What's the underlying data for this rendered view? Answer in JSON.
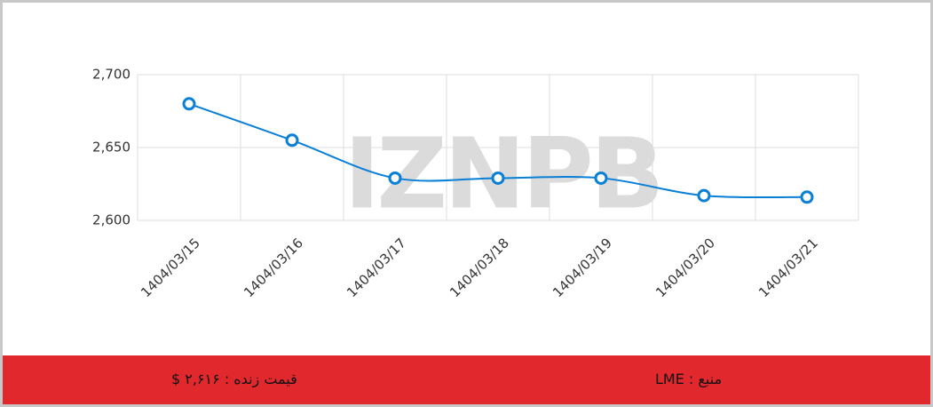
{
  "chart_data": {
    "type": "line",
    "categories": [
      "1404/03/15",
      "1404/03/16",
      "1404/03/17",
      "1404/03/18",
      "1404/03/19",
      "1404/03/20",
      "1404/03/21"
    ],
    "series": [
      {
        "name": "LME",
        "color": "#0a7fd6",
        "values": [
          2680,
          2655,
          2629,
          2629,
          2629,
          2617,
          2616
        ]
      }
    ],
    "ylim": [
      2600,
      2700
    ],
    "yticks": [
      {
        "value": 2600,
        "label": "2,600"
      },
      {
        "value": 2650,
        "label": "2,650"
      },
      {
        "value": 2700,
        "label": "2,700"
      }
    ],
    "grid": true,
    "watermark": "IZNPB"
  },
  "footer": {
    "price": "قیمت زنده : ۲,۶۱۶ $",
    "source": "منبع : LME"
  }
}
